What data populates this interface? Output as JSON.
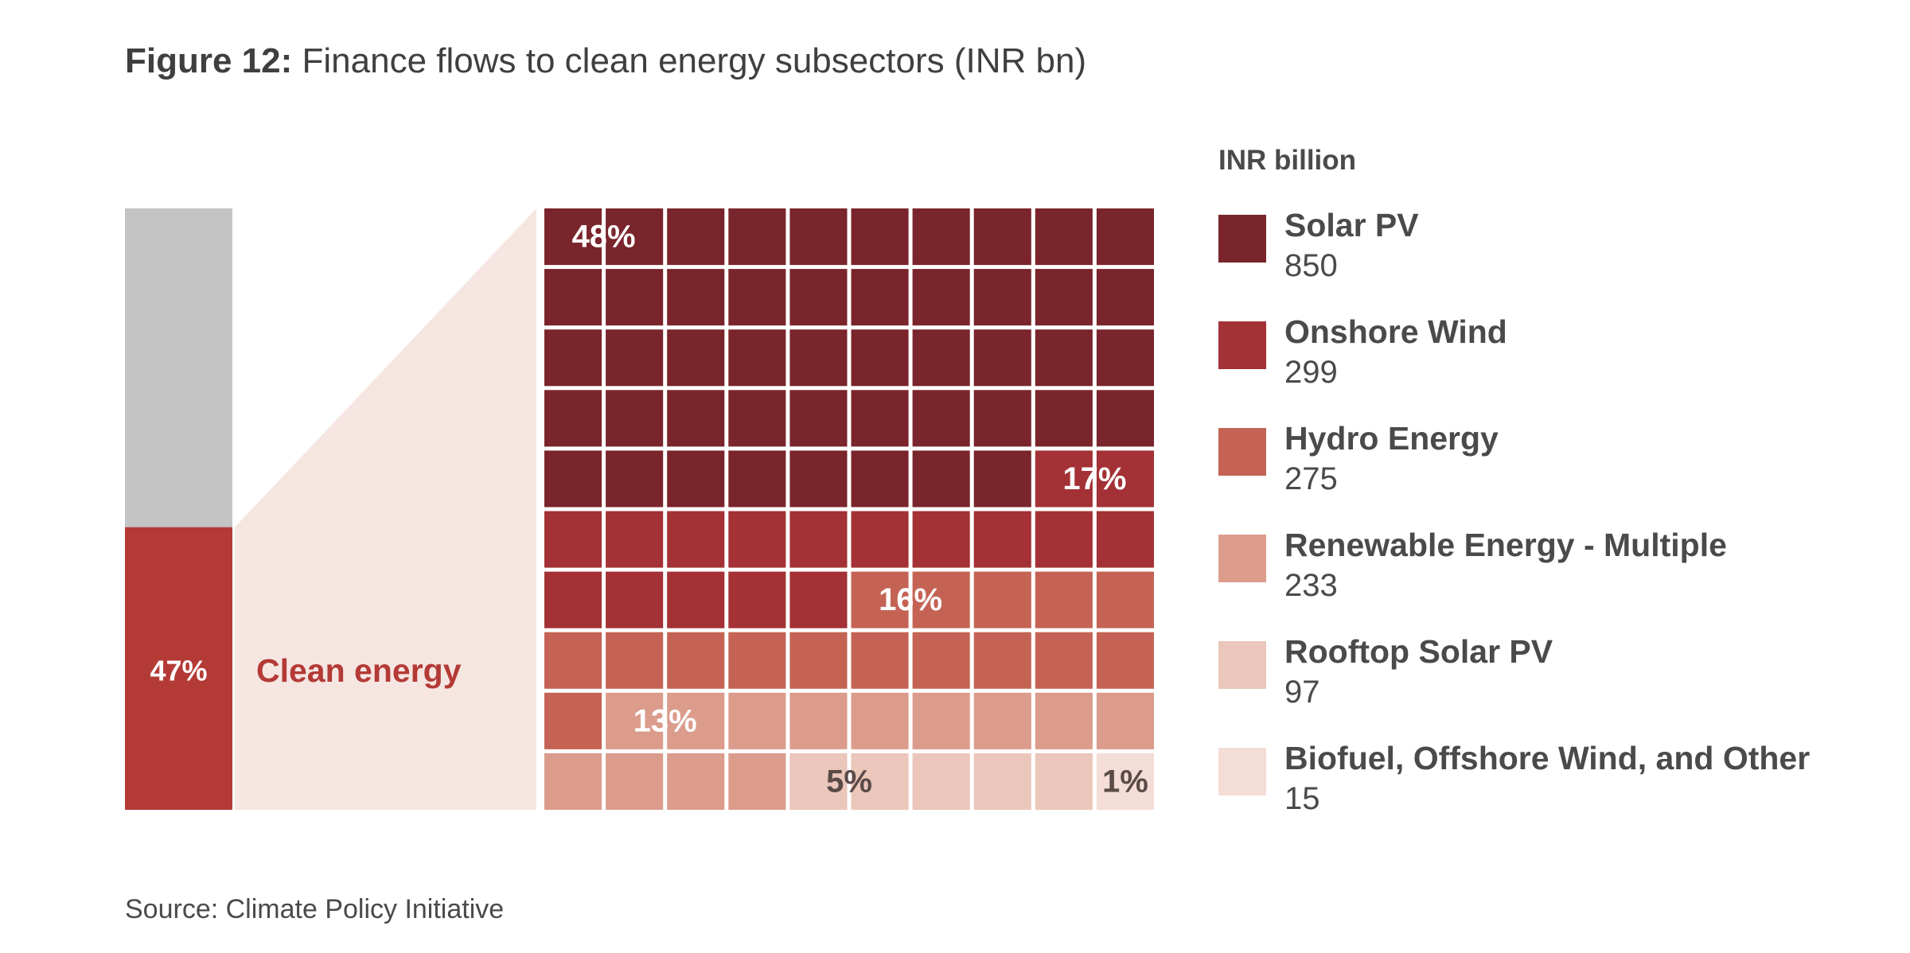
{
  "title": {
    "figure_label": "Figure 12:",
    "text": "Finance flows to clean energy subsectors (INR bn)"
  },
  "source": "Source: Climate Policy Initiative",
  "colors": {
    "other_finance": "#c5c4c5",
    "clean_energy": "#b43a36",
    "connector": "#f5e6e2",
    "clean_energy_text": "#b43a36"
  },
  "chart_data": {
    "type": "waffle",
    "title": "Finance flows to clean energy subsectors (INR bn)",
    "stacked_bar": {
      "segments": [
        {
          "name": "",
          "share_pct": 53,
          "color": "#c5c4c5"
        },
        {
          "name": "Clean energy",
          "share_pct": 47,
          "label": "47%",
          "color": "#b43a36"
        }
      ]
    },
    "waffle": {
      "rows": 10,
      "cols": 10,
      "unit": "INR billion",
      "categories": [
        {
          "name": "Solar PV",
          "value": 850,
          "cells": 48,
          "label": "48%",
          "color": "#7a242b"
        },
        {
          "name": "Onshore Wind",
          "value": 299,
          "cells": 17,
          "label": "17%",
          "color": "#a33135"
        },
        {
          "name": "Hydro Energy",
          "value": 275,
          "cells": 16,
          "label": "16%",
          "color": "#c46354"
        },
        {
          "name": "Renewable Energy - Multiple",
          "value": 233,
          "cells": 13,
          "label": "13%",
          "color": "#db9c8c"
        },
        {
          "name": "Rooftop Solar PV",
          "value": 97,
          "cells": 5,
          "label": "5%",
          "color": "#ebc6ba"
        },
        {
          "name": "Biofuel, Offshore Wind, and Other",
          "value": 15,
          "cells": 1,
          "label": "1%",
          "color": "#f4ddd6"
        }
      ]
    }
  },
  "legend": {
    "heading": "INR billion",
    "items": [
      {
        "name": "Solar PV",
        "value": "850",
        "color": "#7a242b"
      },
      {
        "name": "Onshore Wind",
        "value": "299",
        "color": "#a33135"
      },
      {
        "name": "Hydro Energy",
        "value": "275",
        "color": "#c46354"
      },
      {
        "name": "Renewable Energy - Multiple",
        "value": "233",
        "color": "#db9c8c"
      },
      {
        "name": "Rooftop Solar PV",
        "value": "97",
        "color": "#ebc6ba"
      },
      {
        "name": "Biofuel, Offshore Wind, and Other",
        "value": "15",
        "color": "#f4ddd6"
      }
    ]
  }
}
